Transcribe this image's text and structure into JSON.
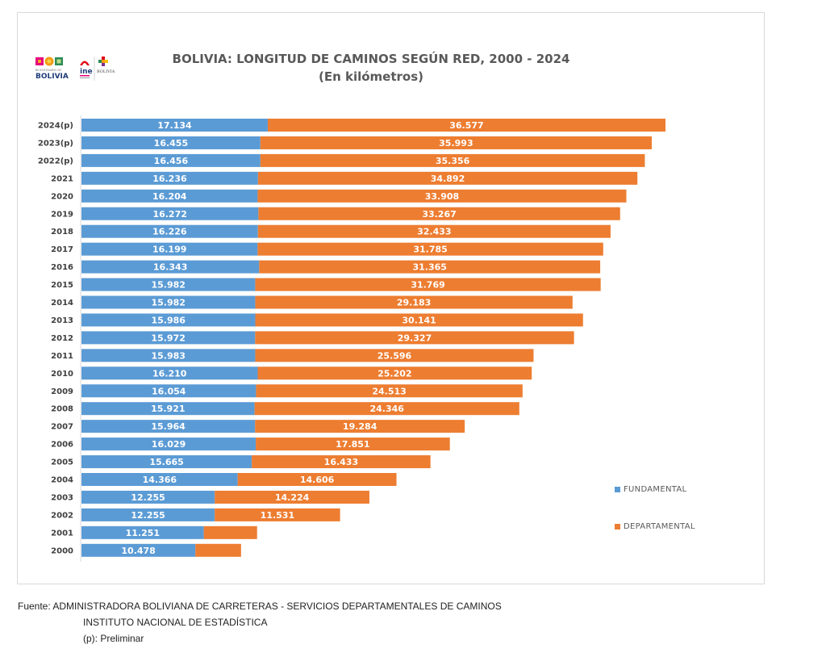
{
  "header": {
    "logos": [
      {
        "name": "bicentenario-bolivia-logo",
        "text_top": "BICENTENARIO DE",
        "text_bottom": "BOLIVIA"
      },
      {
        "name": "ine-logo",
        "text": "ine"
      },
      {
        "name": "estado-bolivia-logo",
        "text": "BOLIVIA"
      }
    ]
  },
  "chart_data": {
    "type": "bar",
    "orientation": "horizontal",
    "stacked": true,
    "title": "BOLIVIA: LONGITUD DE CAMINOS SEGÚN RED, 2000 - 2024",
    "subtitle": "(En kilómetros)",
    "xlabel": "",
    "ylabel": "",
    "grid": false,
    "xaxis_visible": false,
    "categories": [
      "2024(p)",
      "2023(p)",
      "2022(p)",
      "2021",
      "2020",
      "2019",
      "2018",
      "2017",
      "2016",
      "2015",
      "2014",
      "2013",
      "2012",
      "2011",
      "2010",
      "2009",
      "2008",
      "2007",
      "2006",
      "2005",
      "2004",
      "2003",
      "2002",
      "2001",
      "2000"
    ],
    "series": [
      {
        "name": "FUNDAMENTAL",
        "color": "#5b9bd5",
        "values": [
          17134,
          16455,
          16456,
          16236,
          16204,
          16272,
          16226,
          16199,
          16343,
          15982,
          15982,
          15986,
          15972,
          15983,
          16210,
          16054,
          15921,
          15964,
          16029,
          15665,
          14366,
          12255,
          12255,
          11251,
          10478
        ],
        "labels": [
          "17.134",
          "16.455",
          "16.456",
          "16.236",
          "16.204",
          "16.272",
          "16.226",
          "16.199",
          "16.343",
          "15.982",
          "15.982",
          "15.986",
          "15.972",
          "15.983",
          "16.210",
          "16.054",
          "15.921",
          "15.964",
          "16.029",
          "15.665",
          "14.366",
          "12.255",
          "12.255",
          "11.251",
          "10.478"
        ]
      },
      {
        "name": "DEPARTAMENTAL",
        "color": "#ed7d31",
        "values": [
          36577,
          35993,
          35356,
          34892,
          33908,
          33267,
          32433,
          31785,
          31365,
          31769,
          29183,
          30141,
          29327,
          25596,
          25202,
          24513,
          24346,
          19284,
          17851,
          16433,
          14606,
          14224,
          11531,
          4900,
          4200
        ],
        "labels": [
          "36.577",
          "35.993",
          "35.356",
          "34.892",
          "33.908",
          "33.267",
          "32.433",
          "31.785",
          "31.365",
          "31.769",
          "29.183",
          "30.141",
          "29.327",
          "25.596",
          "25.202",
          "24.513",
          "24.346",
          "19.284",
          "17.851",
          "16.433",
          "14.606",
          "14.224",
          "11.531",
          "",
          ""
        ]
      }
    ],
    "xlim": [
      0,
      53711
    ],
    "legend_placement": "right",
    "number_format": "thousands separator '.'"
  },
  "footer": {
    "source_line1": "Fuente: ADMINISTRADORA BOLIVIANA DE CARRETERAS - SERVICIOS DEPARTAMENTALES DE CAMINOS",
    "source_line2": "INSTITUTO NACIONAL DE ESTADÍSTICA",
    "note": "(p): Preliminar"
  }
}
